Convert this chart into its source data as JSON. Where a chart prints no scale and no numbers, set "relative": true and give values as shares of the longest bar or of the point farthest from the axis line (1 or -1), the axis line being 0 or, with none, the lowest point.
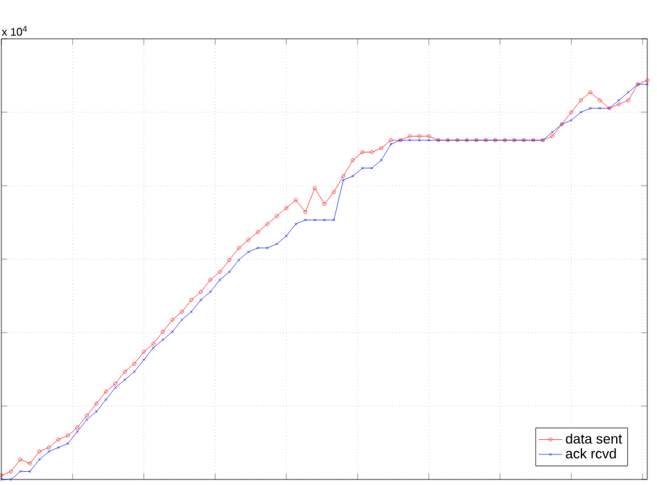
{
  "chart_data": {
    "type": "line",
    "relative": true,
    "grid": true,
    "legend": "bottom right",
    "line_style": "solid",
    "annotations": [
      "x 10$^{4}$"
    ],
    "categories": [
      null,
      null,
      null,
      null,
      null,
      null,
      null,
      null,
      null,
      null,
      null,
      null,
      null,
      null,
      null,
      null,
      null,
      null,
      null,
      null,
      null,
      null,
      null,
      null,
      null,
      null,
      null,
      null,
      null,
      null,
      null,
      null,
      null,
      null,
      null,
      null,
      null,
      null,
      null,
      null,
      null,
      null,
      null,
      null,
      null,
      null,
      null,
      null,
      null,
      null,
      null,
      null,
      null,
      null,
      null,
      null,
      null,
      null,
      null,
      null,
      null,
      null,
      null,
      null,
      null,
      null,
      null,
      null,
      null
    ],
    "series": [
      {
        "name": "data sent",
        "color": "#ff2020",
        "marker": "circle",
        "values": [
          0.01,
          0.02,
          0.05,
          0.04,
          0.07,
          0.08,
          0.1,
          0.11,
          0.13,
          0.16,
          0.19,
          0.22,
          0.24,
          0.27,
          0.29,
          0.32,
          0.34,
          0.37,
          0.4,
          0.42,
          0.45,
          0.47,
          0.5,
          0.52,
          0.55,
          0.58,
          0.6,
          0.62,
          0.64,
          0.66,
          0.68,
          0.7,
          0.67,
          0.73,
          0.69,
          0.72,
          0.76,
          0.8,
          0.82,
          0.82,
          0.83,
          0.85,
          0.85,
          0.86,
          0.86,
          0.86,
          0.85,
          0.85,
          0.85,
          0.85,
          0.85,
          0.85,
          0.85,
          0.85,
          0.85,
          0.85,
          0.85,
          0.85,
          0.86,
          0.89,
          0.92,
          0.95,
          0.97,
          0.95,
          0.93,
          0.94,
          0.95,
          0.99,
          1.0
        ]
      },
      {
        "name": "ack rcvd",
        "color": "#1f2fff",
        "marker": "cross",
        "values": [
          0.0,
          0.0,
          0.02,
          0.02,
          0.05,
          0.07,
          0.08,
          0.09,
          0.12,
          0.15,
          0.17,
          0.2,
          0.23,
          0.25,
          0.27,
          0.3,
          0.33,
          0.35,
          0.37,
          0.4,
          0.42,
          0.45,
          0.47,
          0.5,
          0.52,
          0.55,
          0.57,
          0.58,
          0.58,
          0.59,
          0.61,
          0.64,
          0.65,
          0.65,
          0.65,
          0.65,
          0.75,
          0.76,
          0.78,
          0.78,
          0.8,
          0.84,
          0.85,
          0.85,
          0.85,
          0.85,
          0.85,
          0.85,
          0.85,
          0.85,
          0.85,
          0.85,
          0.85,
          0.85,
          0.85,
          0.85,
          0.85,
          0.85,
          0.87,
          0.89,
          0.9,
          0.92,
          0.93,
          0.93,
          0.93,
          0.95,
          0.97,
          0.99,
          0.99
        ]
      }
    ]
  }
}
